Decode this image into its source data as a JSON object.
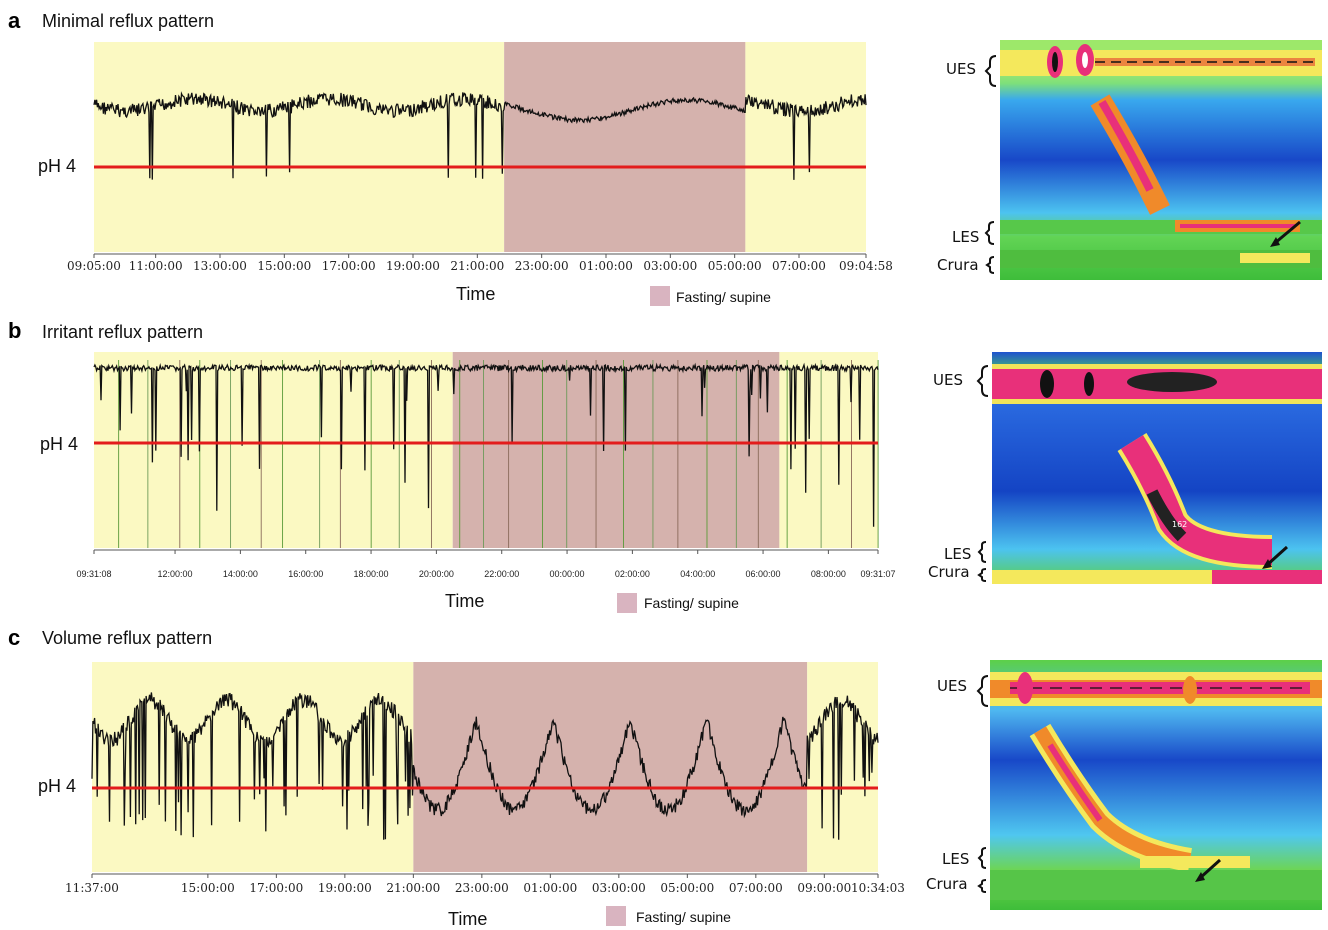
{
  "colors": {
    "awake_band": "#fbf9c2",
    "supine_band": "#d5b2ad",
    "trace": "#111111",
    "threshold": "#e31c1c",
    "legend_swatch": "#d9b4c0"
  },
  "panels": [
    {
      "letter": "a",
      "title": "Minimal reflux pattern",
      "ph_label": "pH 4",
      "time_label": "Time",
      "legend_label": "Fasting/ supine",
      "hrm": {
        "ues": "UES",
        "les": "LES",
        "crura": "Crura",
        "annotation": ""
      }
    },
    {
      "letter": "b",
      "title": "Irritant reflux pattern",
      "ph_label": "pH 4",
      "time_label": "Time",
      "legend_label": "Fasting/ supine",
      "hrm": {
        "ues": "UES",
        "les": "LES",
        "crura": "Crura",
        "annotation": "162"
      }
    },
    {
      "letter": "c",
      "title": "Volume reflux pattern",
      "ph_label": "pH 4",
      "time_label": "Time",
      "legend_label": "Fasting/ supine",
      "hrm": {
        "ues": "UES",
        "les": "LES",
        "crura": "Crura",
        "annotation": ""
      }
    }
  ],
  "chart_data": [
    {
      "type": "line",
      "title": "Minimal reflux pattern",
      "xlabel": "Time",
      "threshold_label": "pH 4",
      "x_ticks": [
        "09:05:00",
        "11:00:00",
        "13:00:00",
        "15:00:00",
        "17:00:00",
        "19:00:00",
        "21:00:00",
        "23:00:00",
        "01:00:00",
        "03:00:00",
        "05:00:00",
        "07:00:00",
        "09:04:58"
      ],
      "supine_period": {
        "start": "21:50:00",
        "end": "05:20:00",
        "label": "Fasting/ supine"
      },
      "pattern": "minimal"
    },
    {
      "type": "line",
      "title": "Irritant reflux pattern",
      "xlabel": "Time",
      "threshold_label": "pH 4",
      "x_ticks": [
        "09:31:08",
        "12:00:00",
        "14:00:00",
        "16:00:00",
        "18:00:00",
        "20:00:00",
        "22:00:00",
        "00:00:00",
        "02:00:00",
        "04:00:00",
        "06:00:00",
        "08:00:00",
        "09:31:07"
      ],
      "supine_period": {
        "start": "20:30:00",
        "end": "06:30:00",
        "label": "Fasting/ supine"
      },
      "pattern": "irritant"
    },
    {
      "type": "line",
      "title": "Volume reflux pattern",
      "xlabel": "Time",
      "threshold_label": "pH 4",
      "x_ticks": [
        "11:37:00",
        "15:00:00",
        "17:00:00",
        "19:00:00",
        "21:00:00",
        "23:00:00",
        "01:00:00",
        "03:00:00",
        "05:00:00",
        "07:00:00",
        "09:00:00",
        "10:34:03"
      ],
      "supine_period": {
        "start": "21:00:00",
        "end": "08:30:00",
        "label": "Fasting/ supine"
      },
      "pattern": "volume"
    }
  ]
}
